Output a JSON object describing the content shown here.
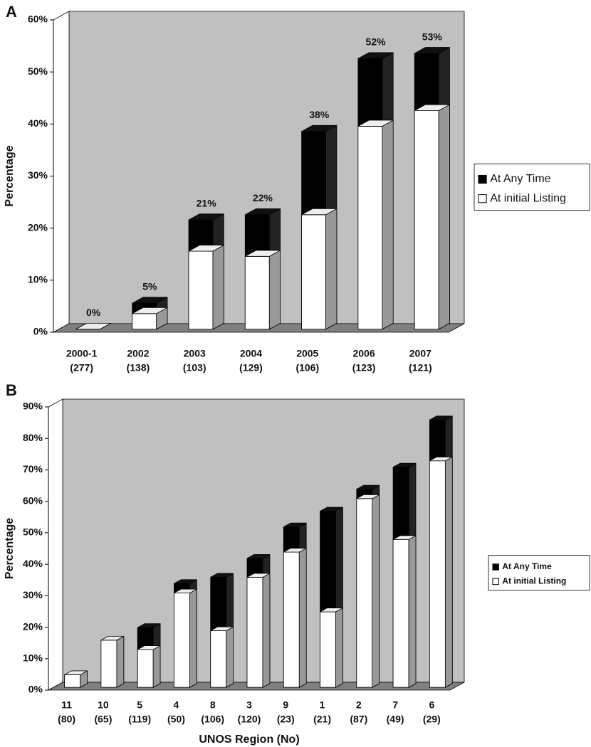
{
  "chart_data": [
    {
      "type": "bar",
      "panel": "A",
      "y_label": "Percentage",
      "categories": [
        "2000-1",
        "2002",
        "2003",
        "2004",
        "2005",
        "2006",
        "2007"
      ],
      "sample_sizes": [
        "(277)",
        "(138)",
        "(103)",
        "(129)",
        "(106)",
        "(123)",
        "(121)"
      ],
      "series": [
        {
          "name": "At Any Time",
          "color": "#000000",
          "values": [
            0,
            5,
            21,
            22,
            38,
            52,
            53
          ],
          "value_labels": [
            "0%",
            "5%",
            "21%",
            "22%",
            "38%",
            "52%",
            "53%"
          ]
        },
        {
          "name": "At initial Listing",
          "color": "#ffffff",
          "values": [
            0,
            3,
            15,
            14,
            22,
            39,
            42
          ]
        }
      ],
      "ylim": [
        0,
        60
      ],
      "yticks": [
        {
          "value": 0,
          "label": "0%"
        },
        {
          "value": 10,
          "label": "10%"
        },
        {
          "value": 20,
          "label": "20%"
        },
        {
          "value": 30,
          "label": "30%"
        },
        {
          "value": 40,
          "label": "40%"
        },
        {
          "value": 50,
          "label": "50%"
        },
        {
          "value": 60,
          "label": "60%"
        }
      ],
      "legend": "right"
    },
    {
      "type": "bar",
      "panel": "B",
      "y_label": "Percentage",
      "x_label": "UNOS Region (No)",
      "categories": [
        "11",
        "10",
        "5",
        "4",
        "8",
        "3",
        "9",
        "1",
        "2",
        "7",
        "6"
      ],
      "sample_sizes": [
        "(80)",
        "(65)",
        "(119)",
        "(50)",
        "(106)",
        "(120)",
        "(23)",
        "(21)",
        "(87)",
        "(49)",
        "(29)"
      ],
      "series": [
        {
          "name": "At Any Time",
          "color": "#000000",
          "values": [
            4,
            15,
            19,
            33,
            35,
            41,
            51,
            56,
            63,
            70,
            85
          ]
        },
        {
          "name": "At initial Listing",
          "color": "#ffffff",
          "values": [
            4,
            15,
            12,
            30,
            18,
            35,
            43,
            24,
            60,
            47,
            72
          ]
        }
      ],
      "ylim": [
        0,
        90
      ],
      "yticks": [
        {
          "value": 0,
          "label": "0%"
        },
        {
          "value": 10,
          "label": "10%"
        },
        {
          "value": 20,
          "label": "20%"
        },
        {
          "value": 30,
          "label": "30%"
        },
        {
          "value": 40,
          "label": "40%"
        },
        {
          "value": 50,
          "label": "50%"
        },
        {
          "value": 60,
          "label": "60%"
        },
        {
          "value": 70,
          "label": "70%"
        },
        {
          "value": 80,
          "label": "80%"
        },
        {
          "value": 90,
          "label": "90%"
        }
      ],
      "legend": "right"
    }
  ]
}
